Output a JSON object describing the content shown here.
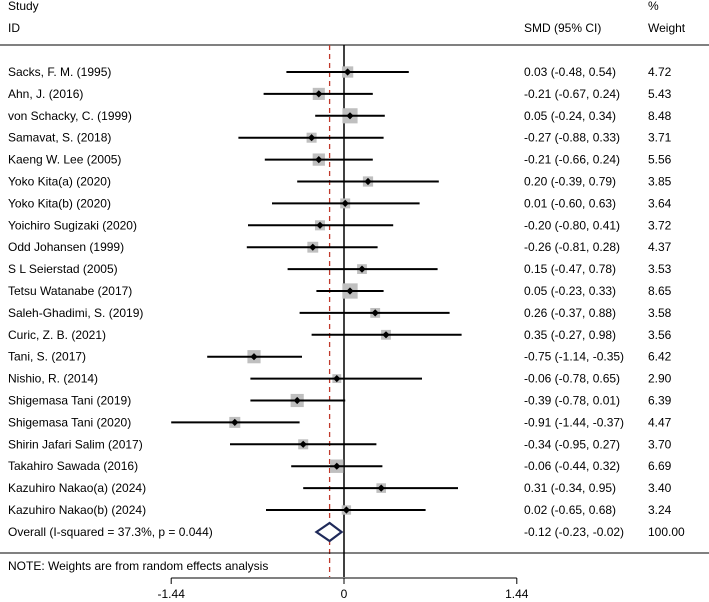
{
  "chart_data": {
    "type": "forest",
    "headers": {
      "study_line1": "Study",
      "study_line2": "ID",
      "effect": "SMD (95% CI)",
      "weight_line1": "%",
      "weight_line2": "Weight"
    },
    "studies": [
      {
        "name": "Sacks, F. M. (1995)",
        "smd": 0.03,
        "lower": -0.48,
        "upper": 0.54,
        "ci_text": "0.03 (-0.48, 0.54)",
        "weight": "4.72"
      },
      {
        "name": "Ahn, J. (2016)",
        "smd": -0.21,
        "lower": -0.67,
        "upper": 0.24,
        "ci_text": "-0.21 (-0.67, 0.24)",
        "weight": "5.43"
      },
      {
        "name": "von Schacky, C. (1999)",
        "smd": 0.05,
        "lower": -0.24,
        "upper": 0.34,
        "ci_text": "0.05 (-0.24, 0.34)",
        "weight": "8.48"
      },
      {
        "name": "Samavat, S. (2018)",
        "smd": -0.27,
        "lower": -0.88,
        "upper": 0.33,
        "ci_text": "-0.27 (-0.88, 0.33)",
        "weight": "3.71"
      },
      {
        "name": "Kaeng W. Lee (2005)",
        "smd": -0.21,
        "lower": -0.66,
        "upper": 0.24,
        "ci_text": "-0.21 (-0.66, 0.24)",
        "weight": "5.56"
      },
      {
        "name": "Yoko Kita(a)  (2020)",
        "smd": 0.2,
        "lower": -0.39,
        "upper": 0.79,
        "ci_text": "0.20 (-0.39, 0.79)",
        "weight": "3.85"
      },
      {
        "name": "Yoko Kita(b)  (2020)",
        "smd": 0.01,
        "lower": -0.6,
        "upper": 0.63,
        "ci_text": "0.01 (-0.60, 0.63)",
        "weight": "3.64"
      },
      {
        "name": "Yoichiro Sugizaki  (2020)",
        "smd": -0.2,
        "lower": -0.8,
        "upper": 0.41,
        "ci_text": "-0.20 (-0.80, 0.41)",
        "weight": "3.72"
      },
      {
        "name": "Odd Johansen  (1999)",
        "smd": -0.26,
        "lower": -0.81,
        "upper": 0.28,
        "ci_text": "-0.26 (-0.81, 0.28)",
        "weight": "4.37"
      },
      {
        "name": "S L Seierstad  (2005)",
        "smd": 0.15,
        "lower": -0.47,
        "upper": 0.78,
        "ci_text": "0.15 (-0.47, 0.78)",
        "weight": "3.53"
      },
      {
        "name": "Tetsu  Watanabe  (2017)",
        "smd": 0.05,
        "lower": -0.23,
        "upper": 0.33,
        "ci_text": "0.05 (-0.23, 0.33)",
        "weight": "8.65"
      },
      {
        "name": "Saleh-Ghadimi, S. (2019)",
        "smd": 0.26,
        "lower": -0.37,
        "upper": 0.88,
        "ci_text": "0.26 (-0.37, 0.88)",
        "weight": "3.58"
      },
      {
        "name": "Curic, Z. B.  (2021)",
        "smd": 0.35,
        "lower": -0.27,
        "upper": 0.98,
        "ci_text": "0.35 (-0.27, 0.98)",
        "weight": "3.56"
      },
      {
        "name": "Tani, S. (2017)",
        "smd": -0.75,
        "lower": -1.14,
        "upper": -0.35,
        "ci_text": "-0.75 (-1.14, -0.35)",
        "weight": "6.42"
      },
      {
        "name": "Nishio, R. (2014)",
        "smd": -0.06,
        "lower": -0.78,
        "upper": 0.65,
        "ci_text": "-0.06 (-0.78, 0.65)",
        "weight": "2.90"
      },
      {
        "name": "Shigemasa Tani  (2019)",
        "smd": -0.39,
        "lower": -0.78,
        "upper": 0.01,
        "ci_text": "-0.39 (-0.78, 0.01)",
        "weight": "6.39"
      },
      {
        "name": "Shigemasa Tani  (2020)",
        "smd": -0.91,
        "lower": -1.44,
        "upper": -0.37,
        "ci_text": "-0.91 (-1.44, -0.37)",
        "weight": "4.47"
      },
      {
        "name": "Shirin Jafari Salim (2017)",
        "smd": -0.34,
        "lower": -0.95,
        "upper": 0.27,
        "ci_text": "-0.34 (-0.95, 0.27)",
        "weight": "3.70"
      },
      {
        "name": "Takahiro Sawada (2016)",
        "smd": -0.06,
        "lower": -0.44,
        "upper": 0.32,
        "ci_text": "-0.06 (-0.44, 0.32)",
        "weight": "6.69"
      },
      {
        "name": "Kazuhiro Nakao(a) (2024)",
        "smd": 0.31,
        "lower": -0.34,
        "upper": 0.95,
        "ci_text": "0.31 (-0.34, 0.95)",
        "weight": "3.40"
      },
      {
        "name": "Kazuhiro Nakao(b) (2024)",
        "smd": 0.02,
        "lower": -0.65,
        "upper": 0.68,
        "ci_text": "0.02 (-0.65, 0.68)",
        "weight": "3.24"
      }
    ],
    "overall": {
      "label": "Overall  (I-squared = 37.3%, p = 0.044)",
      "smd": -0.12,
      "lower": -0.23,
      "upper": -0.02,
      "ci_text": "-0.12 (-0.23, -0.02)",
      "weight": "100.00"
    },
    "note": "NOTE: Weights are from random effects analysis",
    "xlim": [
      -1.44,
      1.44
    ],
    "ticks": [
      -1.44,
      0,
      1.44
    ],
    "tick_labels": [
      "-1.44",
      "0",
      "1.44"
    ],
    "null_line": 0,
    "colors": {
      "point": "#000000",
      "box": "#bfbfbf",
      "ci_line": "#000000",
      "diamond": "#1f2a5a",
      "overall_line": "#c0392b"
    }
  }
}
